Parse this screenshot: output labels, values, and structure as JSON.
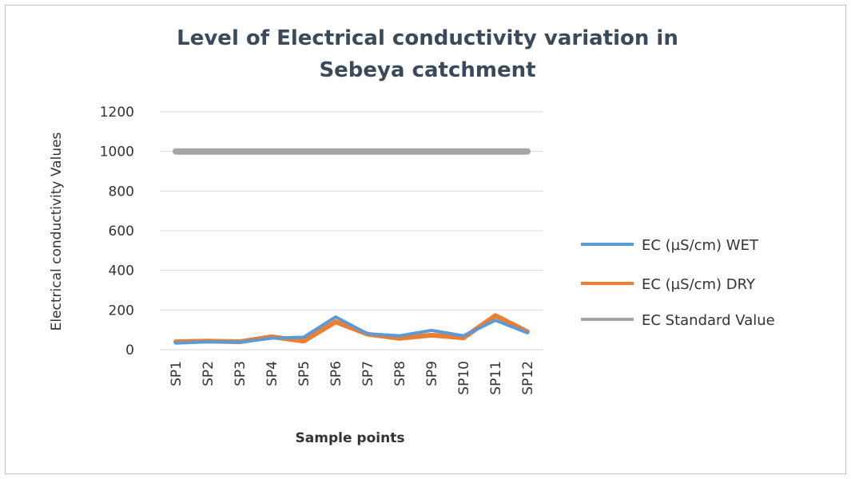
{
  "chart_data": {
    "type": "line",
    "title_lines": [
      "Level of Electrical conductivity variation in",
      "Sebeya catchment"
    ],
    "xlabel": "Sample points",
    "ylabel": "Electrical conductivity Values",
    "ylim": [
      0,
      1200
    ],
    "yticks": [
      0,
      200,
      400,
      600,
      800,
      1000,
      1200
    ],
    "grid": true,
    "legend_position": "right",
    "categories": [
      "SP1",
      "SP2",
      "SP3",
      "SP4",
      "SP5",
      "SP6",
      "SP7",
      "SP8",
      "SP9",
      "SP10",
      "SP11",
      "SP12"
    ],
    "series": [
      {
        "name": "EC (µS/cm) WET",
        "color": "#5b9bd5",
        "values": [
          33,
          40,
          38,
          58,
          63,
          165,
          80,
          70,
          97,
          70,
          148,
          85
        ]
      },
      {
        "name": "EC (µS/cm) DRY",
        "color": "#ed7d31",
        "values": [
          40,
          43,
          40,
          65,
          43,
          140,
          78,
          57,
          73,
          60,
          172,
          90
        ]
      },
      {
        "name": "EC Standard Value",
        "color": "#a5a5a5",
        "values": [
          1000,
          1000,
          1000,
          1000,
          1000,
          1000,
          1000,
          1000,
          1000,
          1000,
          1000,
          1000
        ]
      }
    ]
  }
}
